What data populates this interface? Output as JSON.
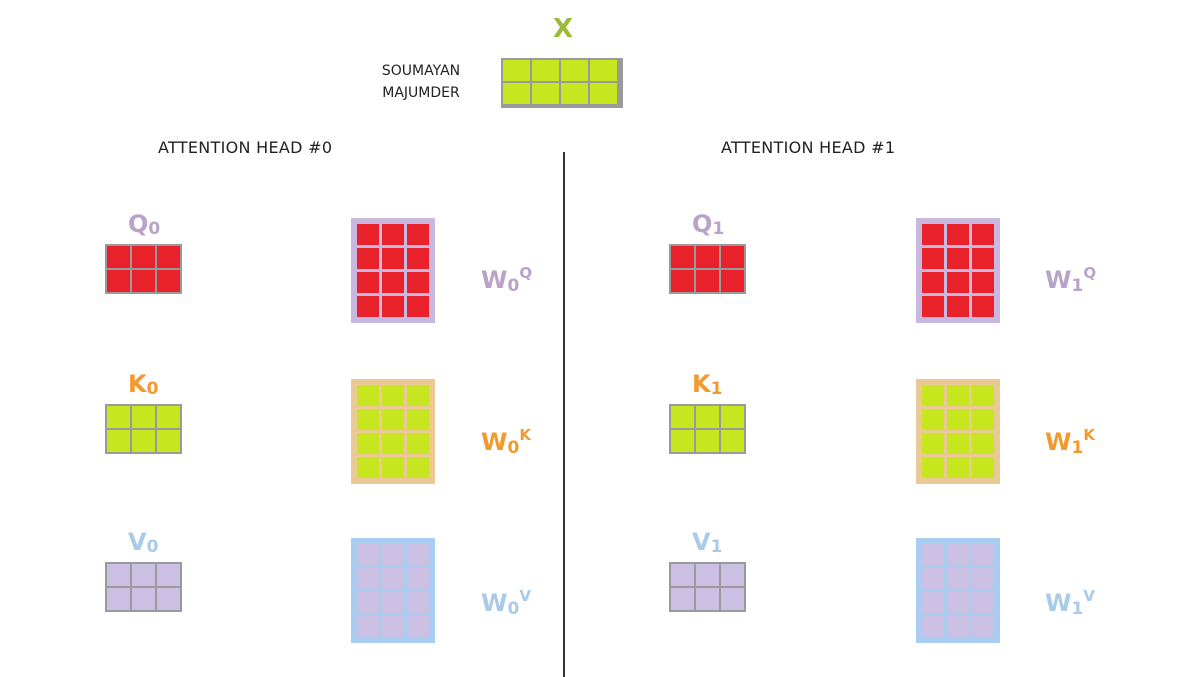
{
  "input": {
    "symbol": "X",
    "author_line1": "SOUMAYAN",
    "author_line2": "MAJUMDER"
  },
  "heads": [
    {
      "title": "ATTENTION HEAD #0",
      "q": {
        "letter": "Q",
        "sub": "0"
      },
      "k": {
        "letter": "K",
        "sub": "0"
      },
      "v": {
        "letter": "V",
        "sub": "0"
      },
      "wq": {
        "letter": "W",
        "sub": "0",
        "sup": "Q"
      },
      "wk": {
        "letter": "W",
        "sub": "0",
        "sup": "K"
      },
      "wv": {
        "letter": "W",
        "sub": "0",
        "sup": "V"
      }
    },
    {
      "title": "ATTENTION HEAD #1",
      "q": {
        "letter": "Q",
        "sub": "1"
      },
      "k": {
        "letter": "K",
        "sub": "1"
      },
      "v": {
        "letter": "V",
        "sub": "1"
      },
      "wq": {
        "letter": "W",
        "sub": "1",
        "sup": "Q"
      },
      "wk": {
        "letter": "W",
        "sub": "1",
        "sup": "K"
      },
      "wv": {
        "letter": "W",
        "sub": "1",
        "sup": "V"
      }
    }
  ],
  "matrices": {
    "x": {
      "rows": 2,
      "cols": 4
    },
    "qkv": {
      "rows": 2,
      "cols": 3
    },
    "w": {
      "rows": 4,
      "cols": 3
    }
  },
  "colors": {
    "x_symbol": "#9bbb3a",
    "query_label": "#b9a3c9",
    "key_label": "#f29a2e",
    "value_label": "#a9cbe8",
    "red_cell": "#e8212b",
    "green_cell": "#c6e620",
    "lavender_cell": "#cbbfe4",
    "grid_gray": "#9a9a9a",
    "lavender_border": "#c8b8e0",
    "tan_border": "#eac995",
    "blue_border": "#a9cdf0"
  }
}
